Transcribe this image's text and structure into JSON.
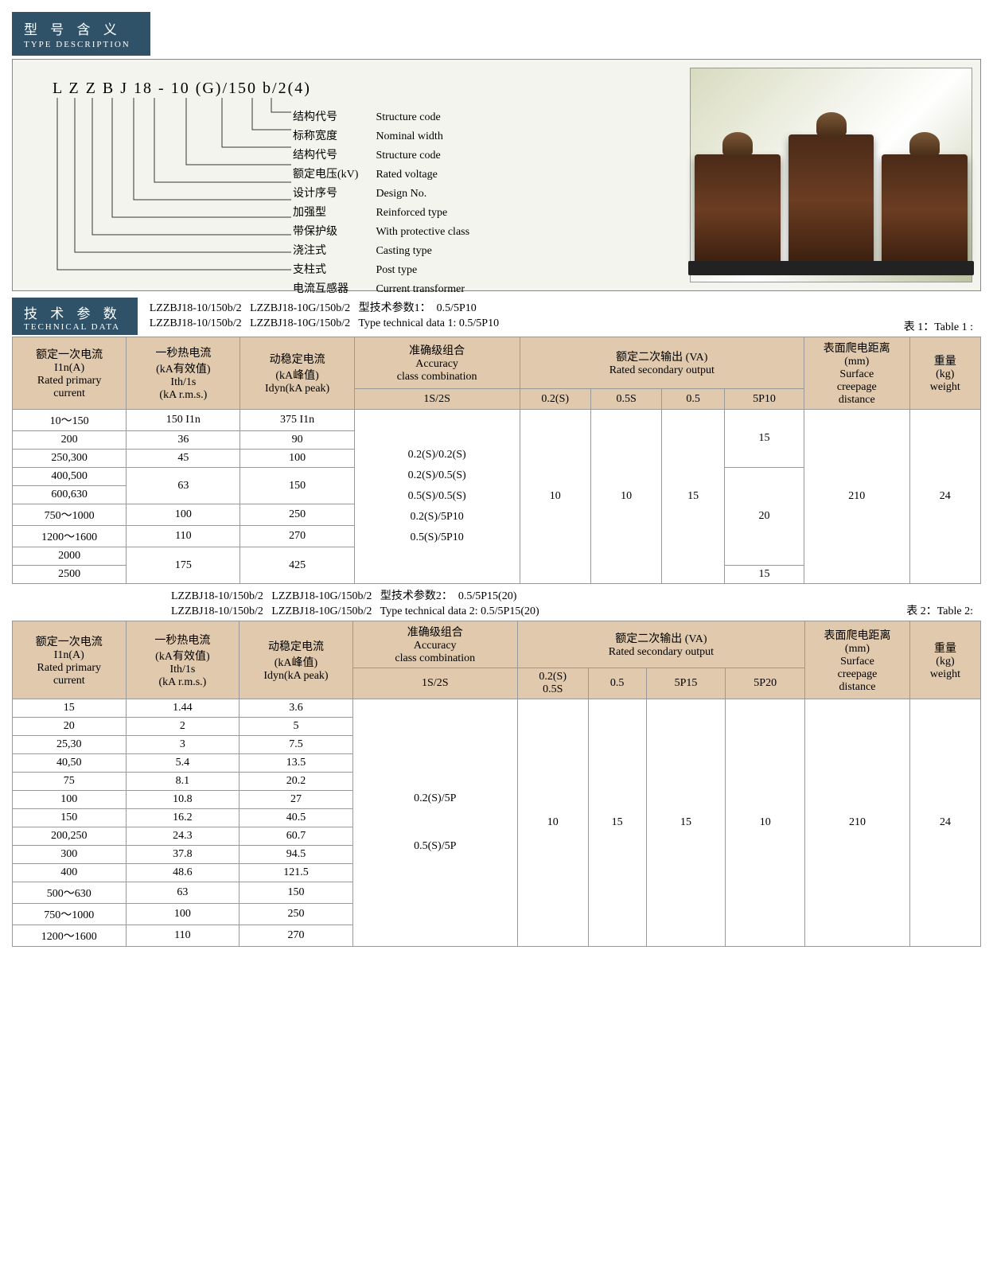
{
  "header": {
    "cn": "型 号 含 义",
    "en": "TYPE DESCRIPTION"
  },
  "model_code": "L Z Z B J 18 - 10 (G)/150  b/2(4)",
  "desc_rows": [
    {
      "cn": "结构代号",
      "en": "Structure code"
    },
    {
      "cn": "标称宽度",
      "en": "Nominal width"
    },
    {
      "cn": "结构代号",
      "en": "Structure code"
    },
    {
      "cn": "额定电压(kV)",
      "en": "Rated voltage"
    },
    {
      "cn": "设计序号",
      "en": "Design No."
    },
    {
      "cn": "加强型",
      "en": "Reinforced type"
    },
    {
      "cn": "带保护级",
      "en": "With protective class"
    },
    {
      "cn": "浇注式",
      "en": "Casting type"
    },
    {
      "cn": "支柱式",
      "en": "Post type"
    },
    {
      "cn": "电流互感器",
      "en": "Current transformer"
    }
  ],
  "tech_header": {
    "cn": "技 术 参 数",
    "en": "TECHNICAL DATA"
  },
  "caption1_l1": "LZZBJ18-10/150b/2   LZZBJ18-10G/150b/2   型技术参数1：  0.5/5P10",
  "caption1_l2": "LZZBJ18-10/150b/2   LZZBJ18-10G/150b/2   Type technical data 1: 0.5/5P10",
  "table1_label": "表 1：Table 1 :",
  "table1": {
    "head": {
      "c1": "额定一次电流\nI1n(A)\nRated primary\ncurrent",
      "c2": "一秒热电流\n(kA有效值)\nIth/1s\n(kA r.m.s.)",
      "c3": "动稳定电流\n(kA峰值)\nIdyn(kA peak)",
      "c4": "准确级组合\nAccuracy\nclass combination",
      "c5": "额定二次输出 (VA)\nRated secondary output",
      "c6": "表面爬电距离\n(mm)\nSurface\ncreepage\ndistance",
      "c7": "重量\n(kg)\nweight",
      "s1": "1S/2S",
      "s2": "0.2(S)",
      "s3": "0.5S",
      "s4": "0.5",
      "s5": "5P10"
    },
    "rows": [
      {
        "a": "10～150",
        "b": "150 I1n",
        "c": "375 I1n"
      },
      {
        "a": "200",
        "b": "36",
        "c": "90"
      },
      {
        "a": "250,300",
        "b": "45",
        "c": "100"
      },
      {
        "a": "400,500"
      },
      {
        "a": "600,630"
      },
      {
        "a": "750～1000",
        "b": "100",
        "c": "250"
      },
      {
        "a": "1200～1600",
        "b": "110",
        "c": "270"
      },
      {
        "a": "2000"
      },
      {
        "a": "2500"
      }
    ],
    "merge_bc_45": "63",
    "merge_bc_45c": "150",
    "merge_bc_89": "175",
    "merge_bc_89c": "425",
    "accuracy": "0.2(S)/0.2(S)\n0.2(S)/0.5(S)\n0.5(S)/0.5(S)\n0.2(S)/5P10\n0.5(S)/5P10",
    "v02s": "10",
    "v05s": "10",
    "v05": "15",
    "p10_a": "15",
    "p10_b": "20",
    "p10_c": "15",
    "creep": "210",
    "wt": "24"
  },
  "caption2_l1": "LZZBJ18-10/150b/2   LZZBJ18-10G/150b/2   型技术参数2：  0.5/5P15(20)",
  "caption2_l2": "LZZBJ18-10/150b/2   LZZBJ18-10G/150b/2   Type technical data 2: 0.5/5P15(20)",
  "table2_label": "表 2：Table 2:",
  "table2": {
    "head": {
      "s1": "1S/2S",
      "s2": "0.2(S)\n0.5S",
      "s3": "0.5",
      "s4": "5P15",
      "s5": "5P20"
    },
    "rows": [
      {
        "a": "15",
        "b": "1.44",
        "c": "3.6"
      },
      {
        "a": "20",
        "b": "2",
        "c": "5"
      },
      {
        "a": "25,30",
        "b": "3",
        "c": "7.5"
      },
      {
        "a": "40,50",
        "b": "5.4",
        "c": "13.5"
      },
      {
        "a": "75",
        "b": "8.1",
        "c": "20.2"
      },
      {
        "a": "100",
        "b": "10.8",
        "c": "27"
      },
      {
        "a": "150",
        "b": "16.2",
        "c": "40.5"
      },
      {
        "a": "200,250",
        "b": "24.3",
        "c": "60.7"
      },
      {
        "a": "300",
        "b": "37.8",
        "c": "94.5"
      },
      {
        "a": "400",
        "b": "48.6",
        "c": "121.5"
      },
      {
        "a": "500～630",
        "b": "63",
        "c": "150"
      },
      {
        "a": "750～1000",
        "b": "100",
        "c": "250"
      },
      {
        "a": "1200～1600",
        "b": "110",
        "c": "270"
      }
    ],
    "accuracy": "0.2(S)/5P\n\n0.5(S)/5P",
    "v1": "10",
    "v2": "15",
    "v3": "15",
    "v4": "10",
    "creep": "210",
    "wt": "24"
  }
}
